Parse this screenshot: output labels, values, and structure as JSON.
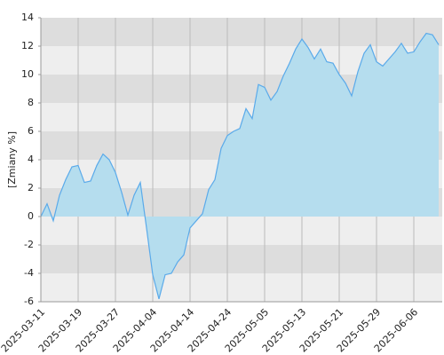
{
  "chart_data": {
    "type": "area",
    "y_label": "[Zmiany %]",
    "categories": [
      "2025-03-11",
      null,
      null,
      null,
      null,
      null,
      "2025-03-19",
      null,
      null,
      null,
      null,
      null,
      "2025-03-27",
      null,
      null,
      null,
      null,
      null,
      "2025-04-04",
      null,
      null,
      null,
      null,
      null,
      "2025-04-14",
      null,
      null,
      null,
      null,
      null,
      "2025-04-24",
      null,
      null,
      null,
      null,
      null,
      "2025-05-05",
      null,
      null,
      null,
      null,
      null,
      "2025-05-13",
      null,
      null,
      null,
      null,
      null,
      "2025-05-21",
      null,
      null,
      null,
      null,
      null,
      "2025-05-29",
      null,
      null,
      null,
      null,
      null,
      "2025-06-06",
      null,
      null,
      null,
      null
    ],
    "values": [
      0,
      0.9,
      -0.3,
      1.5,
      2.6,
      3.5,
      3.6,
      2.4,
      2.5,
      3.6,
      4.4,
      4.0,
      3.1,
      1.7,
      0.1,
      1.5,
      2.4,
      -0.8,
      -4.1,
      -5.8,
      -4.1,
      -4.0,
      -3.2,
      -2.7,
      -0.8,
      -0.3,
      0.2,
      1.9,
      2.6,
      4.8,
      5.7,
      6.0,
      6.2,
      7.6,
      6.9,
      9.3,
      9.1,
      8.2,
      8.8,
      9.9,
      10.8,
      11.8,
      12.5,
      11.9,
      11.1,
      11.8,
      10.9,
      10.8,
      10.0,
      9.4,
      8.5,
      10.2,
      11.5,
      12.1,
      10.9,
      10.6,
      11.1,
      11.6,
      12.2,
      11.5,
      11.6,
      12.3,
      12.9,
      12.8,
      12.1
    ],
    "color": "#5aaaea",
    "fill_color": "#b5ddee",
    "ylim": [
      -6,
      14
    ],
    "yticks": [
      -6,
      -4,
      -2,
      0,
      2,
      4,
      6,
      8,
      10,
      12,
      14
    ],
    "grid": true
  }
}
